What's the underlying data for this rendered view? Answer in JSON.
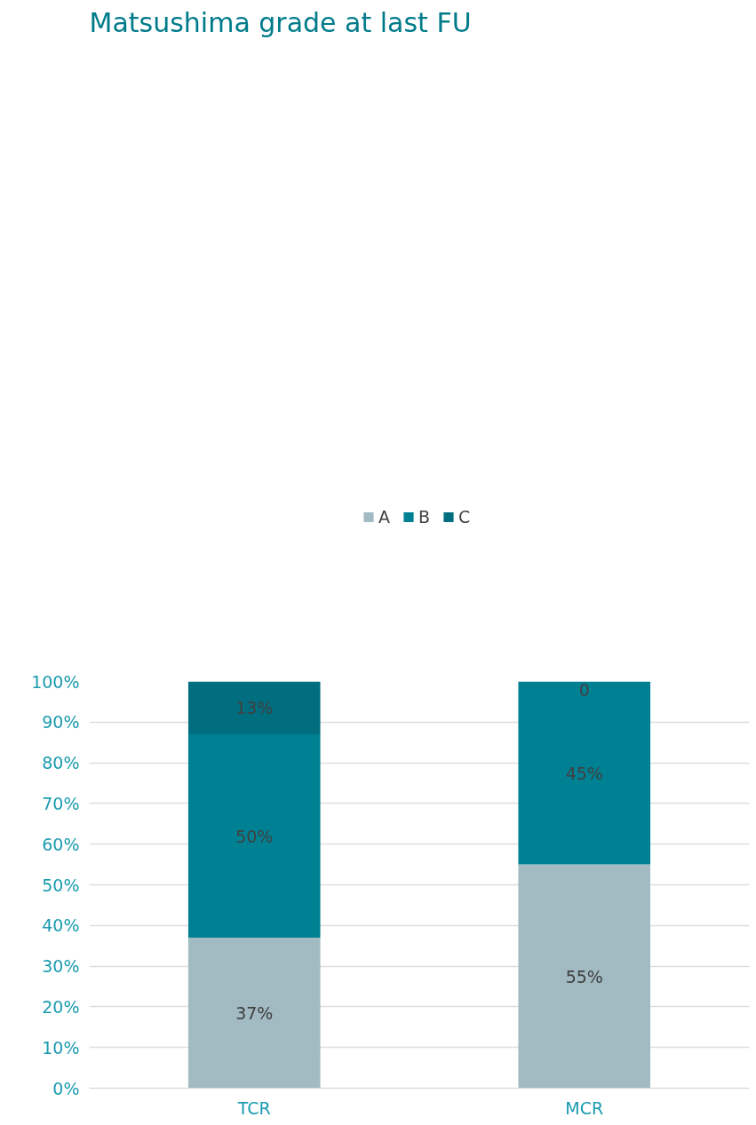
{
  "chart_data": {
    "type": "bar",
    "title": "Matsushima grade at last FU",
    "categories": [
      "TCR",
      "MCR"
    ],
    "stacked": true,
    "series": [
      {
        "name": "A",
        "color": "#a2bac2",
        "values": [
          37,
          55
        ],
        "value_labels": [
          "37%",
          "55%"
        ]
      },
      {
        "name": "B",
        "color": "#008193",
        "values": [
          50,
          45
        ],
        "value_labels": [
          "50%",
          "45%"
        ]
      },
      {
        "name": "C",
        "color": "#006e7e",
        "values": [
          13,
          0
        ],
        "value_labels": [
          "13%",
          "0"
        ]
      }
    ],
    "ylim": [
      0,
      100
    ],
    "yticks": [
      {
        "value": 0,
        "label": "0%"
      },
      {
        "value": 10,
        "label": "10%"
      },
      {
        "value": 20,
        "label": "20%"
      },
      {
        "value": 30,
        "label": "30%"
      },
      {
        "value": 40,
        "label": "40%"
      },
      {
        "value": 50,
        "label": "50%"
      },
      {
        "value": 60,
        "label": "60%"
      },
      {
        "value": 70,
        "label": "70%"
      },
      {
        "value": 80,
        "label": "80%"
      },
      {
        "value": 90,
        "label": "90%"
      },
      {
        "value": 100,
        "label": "100%"
      }
    ],
    "grid": "y",
    "legend": "top"
  }
}
